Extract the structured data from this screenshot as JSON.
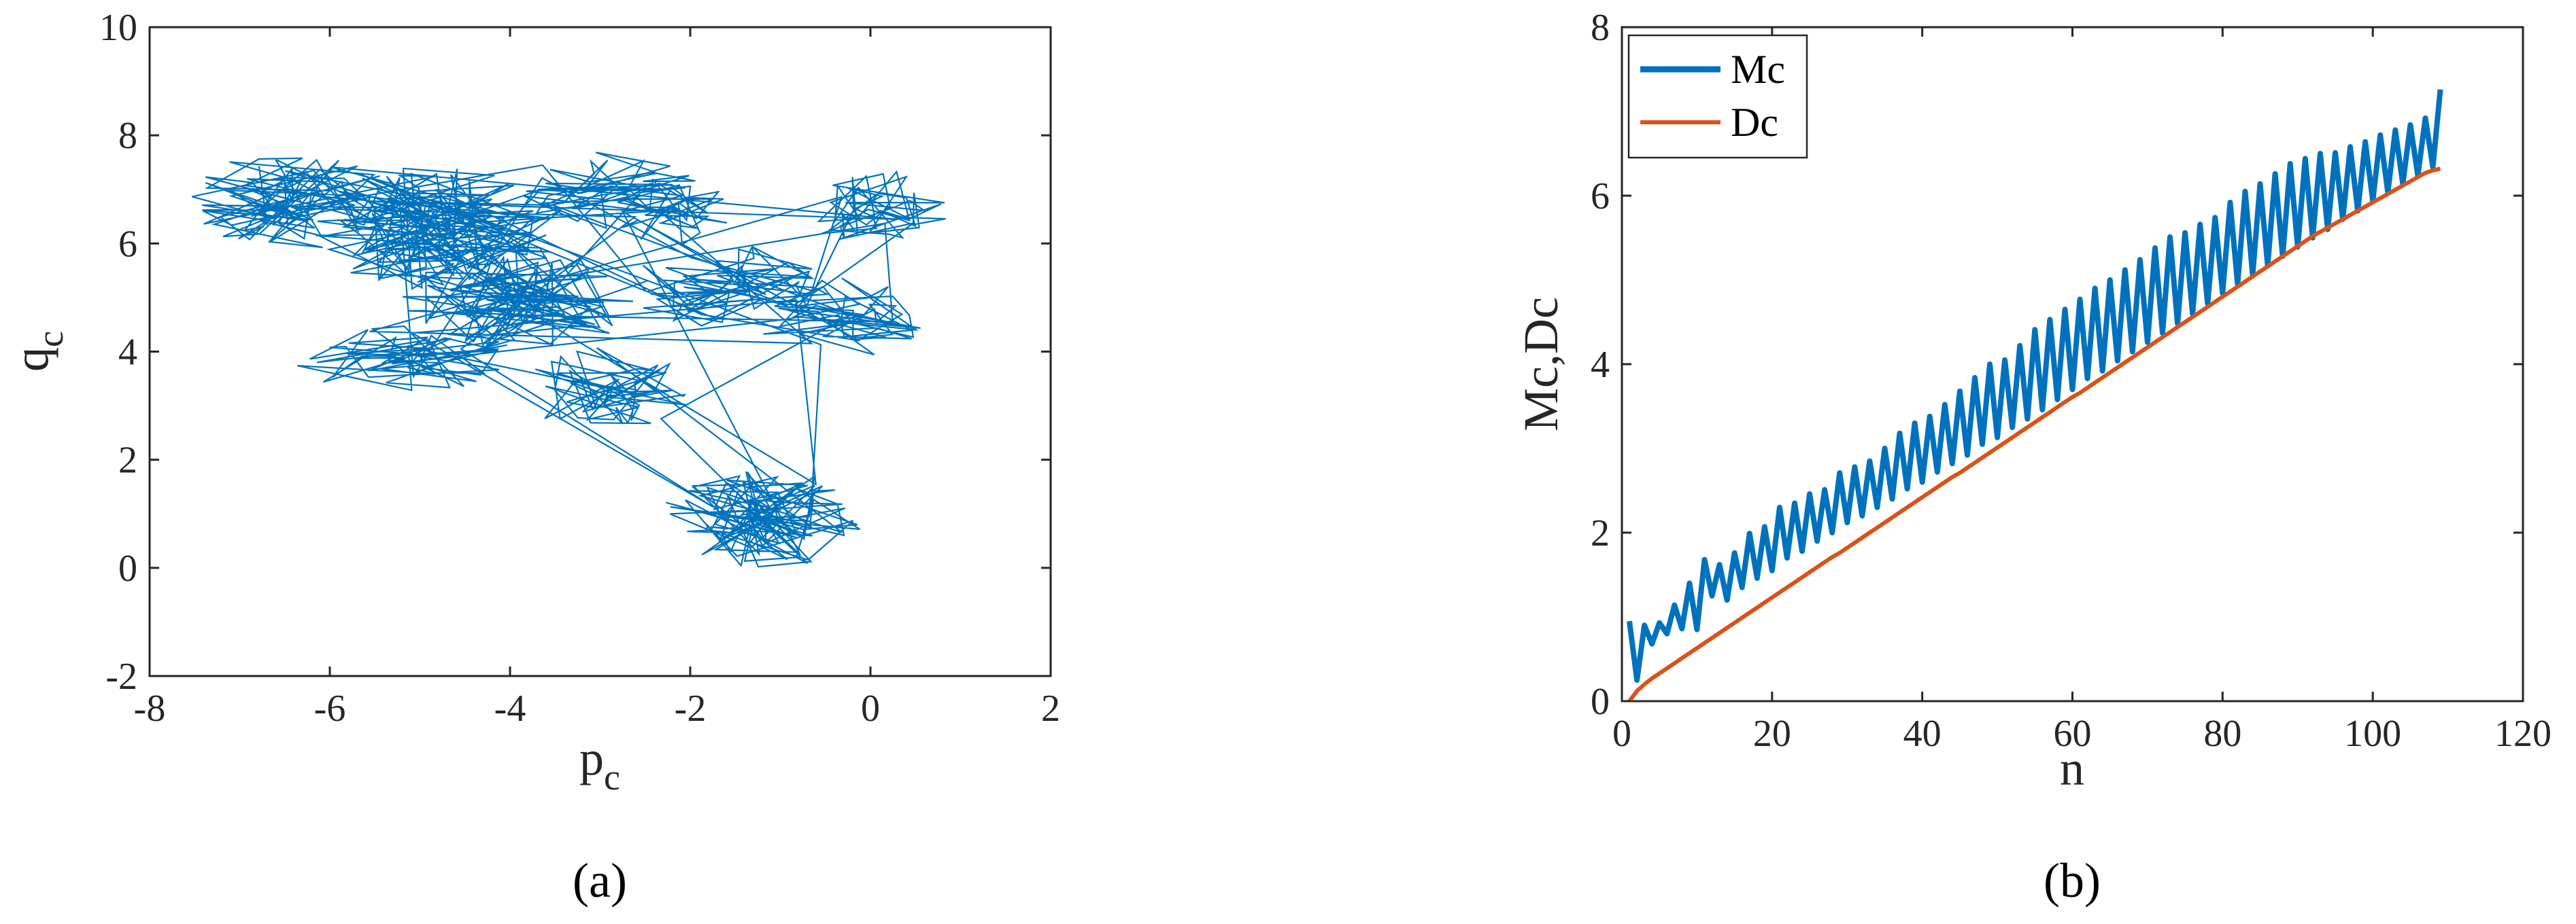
{
  "colors": {
    "mc": "#0072BD",
    "dc": "#D95319",
    "axis": "#262626"
  },
  "panel_labels": {
    "a": "(a)",
    "b": "(b)"
  },
  "chart_data": [
    {
      "type": "line",
      "panel": "(a)",
      "xlabel": "p",
      "xlabel_sub": "c",
      "ylabel": "q",
      "ylabel_sub": "c",
      "xlim": [
        -8,
        2
      ],
      "ylim": [
        -2,
        10
      ],
      "xticks": [
        "-8",
        "-6",
        "-4",
        "-2",
        "0",
        "2"
      ],
      "yticks": [
        "-2",
        "0",
        "2",
        "4",
        "6",
        "8",
        "10"
      ],
      "grid": false,
      "series": [
        {
          "color": "#0072BD",
          "note_clusters": "random-walk trajectory wandering among star-shaped clusters",
          "clusters": [
            {
              "center": [
                -6.4,
                6.8
              ],
              "spread": [
                0.9,
                0.7
              ],
              "steps": 90
            },
            {
              "center": [
                -4.8,
                6.3
              ],
              "spread": [
                1.1,
                0.9
              ],
              "steps": 140
            },
            {
              "center": [
                -3.9,
                5.0
              ],
              "spread": [
                1.0,
                0.8
              ],
              "steps": 110
            },
            {
              "center": [
                -2.9,
                7.0
              ],
              "spread": [
                0.8,
                0.6
              ],
              "steps": 50
            },
            {
              "center": [
                -2.2,
                6.6
              ],
              "spread": [
                0.6,
                0.5
              ],
              "steps": 40
            },
            {
              "center": [
                -1.6,
                5.2
              ],
              "spread": [
                0.9,
                0.6
              ],
              "steps": 60
            },
            {
              "center": [
                0.1,
                6.6
              ],
              "spread": [
                0.6,
                0.6
              ],
              "steps": 50
            },
            {
              "center": [
                -0.3,
                4.6
              ],
              "spread": [
                0.8,
                0.6
              ],
              "steps": 50
            },
            {
              "center": [
                -5.2,
                3.9
              ],
              "spread": [
                1.0,
                0.5
              ],
              "steps": 60
            },
            {
              "center": [
                -2.9,
                3.3
              ],
              "spread": [
                0.8,
                0.6
              ],
              "steps": 60
            },
            {
              "center": [
                -1.2,
                0.9
              ],
              "spread": [
                0.9,
                0.7
              ],
              "steps": 120
            }
          ]
        }
      ]
    },
    {
      "type": "line",
      "panel": "(b)",
      "xlabel": "n",
      "ylabel": "Mc,Dc",
      "xlim": [
        0,
        120
      ],
      "ylim": [
        0,
        8
      ],
      "xticks": [
        "0",
        "20",
        "40",
        "60",
        "80",
        "100",
        "120"
      ],
      "yticks": [
        "0",
        "2",
        "4",
        "6",
        "8"
      ],
      "grid": false,
      "legend_position": "top-left",
      "series": [
        {
          "name": "Mc",
          "color": "#0072BD",
          "x_start": 1,
          "x_end": 109,
          "values": [
            0.95,
            0.25,
            0.9,
            0.68,
            0.93,
            0.8,
            1.14,
            0.86,
            1.4,
            0.85,
            1.68,
            1.25,
            1.62,
            1.2,
            1.76,
            1.35,
            1.99,
            1.46,
            2.07,
            1.55,
            2.3,
            1.7,
            2.35,
            1.78,
            2.46,
            1.9,
            2.51,
            2.0,
            2.71,
            2.12,
            2.78,
            2.2,
            2.85,
            2.3,
            3.0,
            2.4,
            3.18,
            2.52,
            3.3,
            2.6,
            3.38,
            2.72,
            3.52,
            2.82,
            3.68,
            2.92,
            3.84,
            3.05,
            4.0,
            3.13,
            4.05,
            3.25,
            4.22,
            3.35,
            4.41,
            3.46,
            4.53,
            3.58,
            4.65,
            3.7,
            4.77,
            3.83,
            4.9,
            3.92,
            5.0,
            4.04,
            5.12,
            4.15,
            5.24,
            4.26,
            5.38,
            4.37,
            5.51,
            4.48,
            5.56,
            4.6,
            5.66,
            4.72,
            5.74,
            4.84,
            5.92,
            4.95,
            6.05,
            5.06,
            6.14,
            5.17,
            6.26,
            5.28,
            6.38,
            5.39,
            6.44,
            5.5,
            6.5,
            5.6,
            6.51,
            5.72,
            6.58,
            5.82,
            6.64,
            5.94,
            6.72,
            6.04,
            6.78,
            6.14,
            6.84,
            6.24,
            6.92,
            6.34,
            7.26
          ]
        },
        {
          "name": "Dc",
          "color": "#D95319",
          "x_start": 1,
          "x_end": 109,
          "values": [
            0.0,
            0.12,
            0.2,
            0.27,
            0.33,
            0.39,
            0.45,
            0.51,
            0.57,
            0.63,
            0.69,
            0.75,
            0.81,
            0.87,
            0.93,
            0.99,
            1.05,
            1.11,
            1.17,
            1.23,
            1.29,
            1.35,
            1.41,
            1.47,
            1.53,
            1.59,
            1.65,
            1.71,
            1.76,
            1.82,
            1.88,
            1.94,
            2.0,
            2.06,
            2.12,
            2.18,
            2.24,
            2.3,
            2.36,
            2.42,
            2.48,
            2.54,
            2.6,
            2.66,
            2.71,
            2.77,
            2.83,
            2.89,
            2.95,
            3.01,
            3.07,
            3.13,
            3.19,
            3.25,
            3.31,
            3.37,
            3.43,
            3.49,
            3.55,
            3.61,
            3.66,
            3.72,
            3.78,
            3.84,
            3.9,
            3.96,
            4.02,
            4.08,
            4.14,
            4.2,
            4.26,
            4.32,
            4.38,
            4.44,
            4.5,
            4.56,
            4.62,
            4.68,
            4.74,
            4.8,
            4.86,
            4.92,
            4.98,
            5.04,
            5.1,
            5.16,
            5.22,
            5.28,
            5.34,
            5.4,
            5.46,
            5.52,
            5.57,
            5.62,
            5.67,
            5.72,
            5.77,
            5.82,
            5.87,
            5.92,
            5.97,
            6.02,
            6.07,
            6.12,
            6.17,
            6.22,
            6.27,
            6.3,
            6.32
          ]
        }
      ]
    }
  ]
}
